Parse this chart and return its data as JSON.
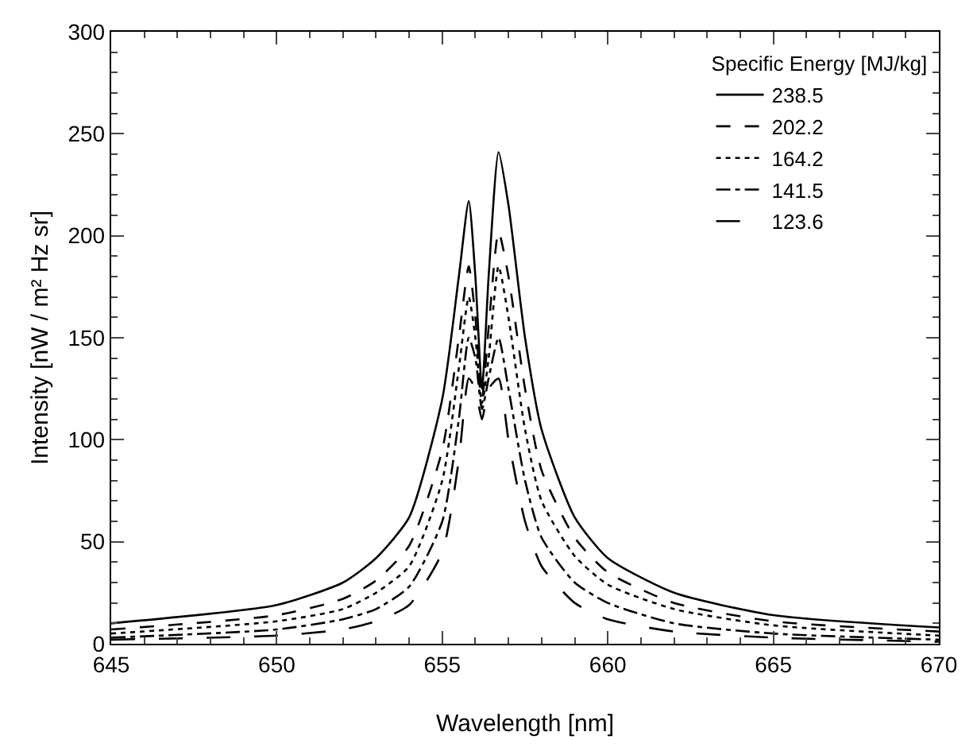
{
  "chart_data": {
    "type": "line",
    "xlabel": "Wavelength [nm]",
    "ylabel": "Intensity [nW / m² Hz sr]",
    "legend_title": "Specific Energy [MJ/kg]",
    "legend": "top right",
    "grid": false,
    "marker": "none",
    "x": [
      645,
      650,
      652,
      653,
      654,
      655,
      655.5,
      655.8,
      656,
      656.2,
      656.4,
      656.7,
      657,
      657.5,
      658,
      659,
      660,
      662,
      665,
      670
    ],
    "xlim": [
      645,
      670
    ],
    "xticks": [
      645,
      650,
      655,
      660,
      665,
      670
    ],
    "ylim": [
      0,
      300
    ],
    "yticks": [
      0,
      50,
      100,
      150,
      200,
      250,
      300
    ],
    "series": [
      {
        "name": "238.5",
        "color": "#000000",
        "line_style": "solid",
        "values": [
          10,
          19,
          30,
          42,
          62,
          120,
          180,
          217,
          180,
          125,
          180,
          241,
          215,
          150,
          105,
          62,
          42,
          25,
          14,
          8
        ]
      },
      {
        "name": "202.2",
        "color": "#000000",
        "line_style": "dashed",
        "values": [
          7,
          14,
          22,
          31,
          48,
          95,
          150,
          185,
          160,
          120,
          155,
          202,
          180,
          125,
          85,
          52,
          35,
          20,
          11,
          6
        ]
      },
      {
        "name": "164.2",
        "color": "#000000",
        "line_style": "dotted",
        "values": [
          5,
          11,
          17,
          25,
          38,
          80,
          135,
          170,
          150,
          118,
          140,
          185,
          160,
          105,
          70,
          43,
          29,
          17,
          9,
          4
        ]
      },
      {
        "name": "141.5",
        "color": "#000000",
        "line_style": "dashdot",
        "values": [
          3,
          7,
          12,
          17,
          28,
          60,
          110,
          150,
          140,
          115,
          130,
          150,
          125,
          80,
          52,
          30,
          20,
          10,
          5,
          2
        ]
      },
      {
        "name": "123.6",
        "color": "#000000",
        "line_style": "longdash",
        "values": [
          2,
          4,
          7,
          11,
          19,
          45,
          90,
          130,
          125,
          110,
          125,
          130,
          100,
          60,
          38,
          20,
          12,
          6,
          3,
          1
        ]
      }
    ]
  }
}
